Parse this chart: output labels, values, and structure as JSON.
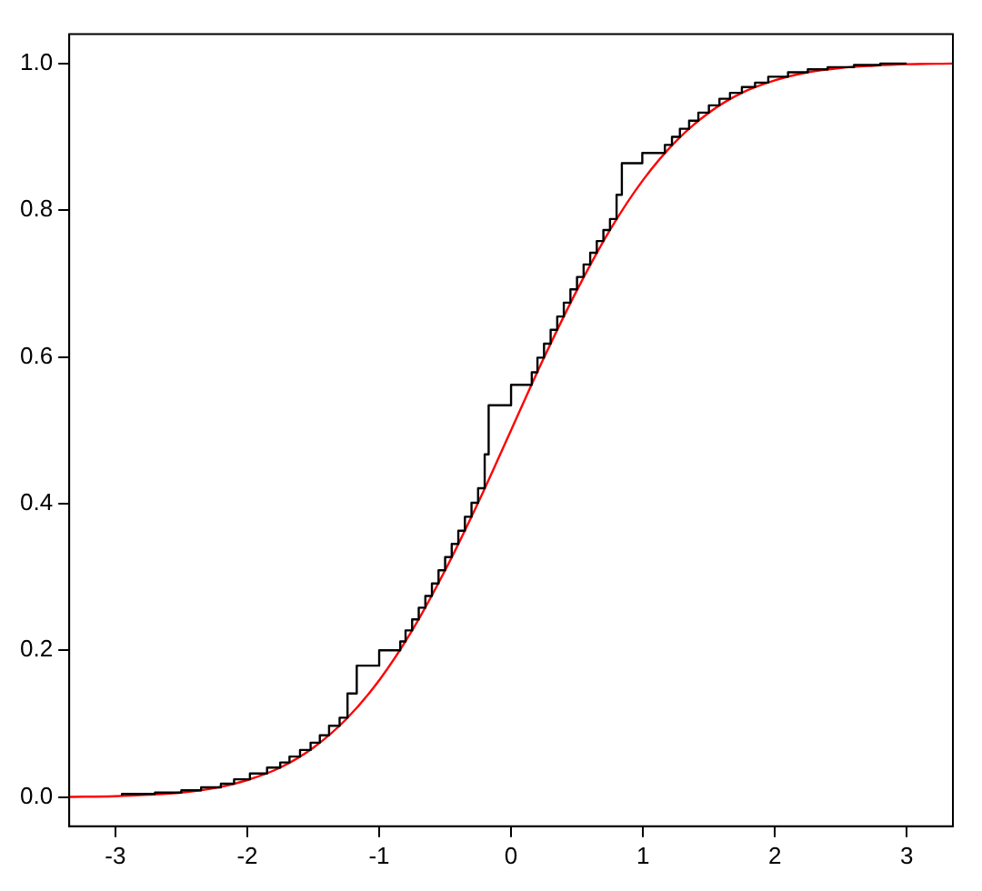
{
  "chart_data": {
    "type": "step",
    "xlim": [
      -3.35,
      3.35
    ],
    "ylim": [
      -0.04,
      1.04
    ],
    "xticks": [
      -3,
      -2,
      -1,
      0,
      1,
      2,
      3
    ],
    "yticks": [
      {
        "value": 0,
        "label": "0.0"
      },
      {
        "value": 0.2,
        "label": "0.2"
      },
      {
        "value": 0.4,
        "label": "0.4"
      },
      {
        "value": 0.6,
        "label": "0.6"
      },
      {
        "value": 0.8,
        "label": "0.8"
      },
      {
        "value": 1,
        "label": "1.0"
      }
    ],
    "grid": false,
    "legend": false,
    "series": [
      {
        "color": "#000000",
        "x": [
          -2.95,
          -2.7,
          -2.5,
          -2.35,
          -2.2,
          -2.1,
          -1.98,
          -1.85,
          -1.75,
          -1.68,
          -1.6,
          -1.52,
          -1.45,
          -1.38,
          -1.3,
          -1.24,
          -1.17,
          -1.0,
          -0.84,
          -0.8,
          -0.75,
          -0.7,
          -0.65,
          -0.6,
          -0.55,
          -0.5,
          -0.45,
          -0.4,
          -0.35,
          -0.3,
          -0.25,
          -0.2,
          -0.17,
          0.0,
          0.157,
          0.2,
          0.25,
          0.3,
          0.35,
          0.4,
          0.45,
          0.5,
          0.55,
          0.6,
          0.65,
          0.7,
          0.75,
          0.8,
          0.84,
          0.995,
          1.166,
          1.22,
          1.28,
          1.35,
          1.42,
          1.5,
          1.58,
          1.66,
          1.75,
          1.85,
          1.95,
          2.1,
          2.25,
          2.4,
          2.6,
          2.8,
          3.0
        ],
        "values": [
          0.002,
          0.004,
          0.006,
          0.009,
          0.013,
          0.018,
          0.024,
          0.032,
          0.04,
          0.047,
          0.055,
          0.064,
          0.074,
          0.084,
          0.097,
          0.108,
          0.141,
          0.179,
          0.2,
          0.212,
          0.227,
          0.242,
          0.258,
          0.274,
          0.291,
          0.309,
          0.327,
          0.345,
          0.363,
          0.382,
          0.401,
          0.421,
          0.467,
          0.534,
          0.562,
          0.579,
          0.599,
          0.618,
          0.637,
          0.655,
          0.674,
          0.692,
          0.709,
          0.726,
          0.742,
          0.758,
          0.773,
          0.788,
          0.821,
          0.864,
          0.878,
          0.889,
          0.9,
          0.911,
          0.922,
          0.933,
          0.943,
          0.952,
          0.96,
          0.968,
          0.974,
          0.982,
          0.988,
          0.992,
          0.995,
          0.998,
          1.0
        ]
      },
      {
        "type": "line",
        "color": "#ff0000",
        "x": [
          -3.35,
          -3.0,
          -2.75,
          -2.5,
          -2.25,
          -2.0,
          -1.75,
          -1.5,
          -1.25,
          -1.0,
          -0.75,
          -0.5,
          -0.25,
          0.0,
          0.25,
          0.5,
          0.75,
          1.0,
          1.25,
          1.5,
          1.75,
          2.0,
          2.25,
          2.5,
          2.75,
          3.0,
          3.35
        ],
        "values": [
          0.0,
          0.001,
          0.003,
          0.006,
          0.012,
          0.023,
          0.04,
          0.067,
          0.106,
          0.159,
          0.227,
          0.309,
          0.401,
          0.5,
          0.599,
          0.691,
          0.773,
          0.841,
          0.894,
          0.933,
          0.96,
          0.977,
          0.988,
          0.994,
          0.997,
          0.999,
          1.0
        ]
      }
    ]
  }
}
